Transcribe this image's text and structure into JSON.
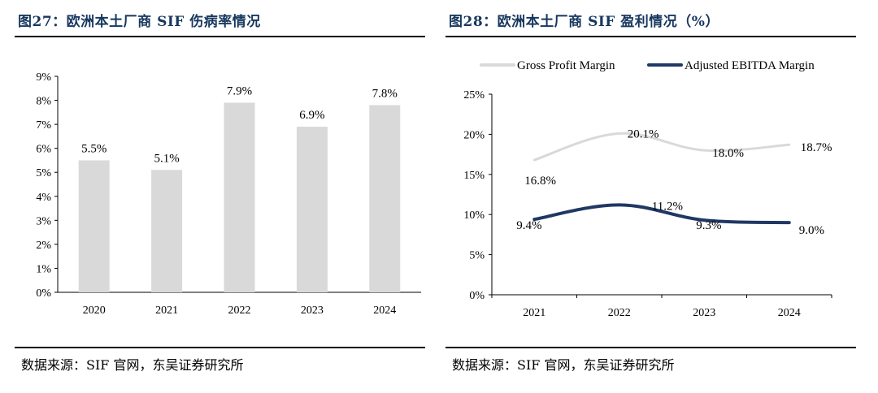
{
  "chart_data": [
    {
      "type": "bar",
      "title": "图27：欧洲本土厂商 SIF 伤病率情况",
      "source": "数据来源：SIF 官网，东吴证券研究所",
      "categories": [
        "2020",
        "2021",
        "2022",
        "2023",
        "2024"
      ],
      "values": [
        5.5,
        5.1,
        7.9,
        6.9,
        7.8
      ],
      "data_labels": [
        "5.5%",
        "5.1%",
        "7.9%",
        "6.9%",
        "7.8%"
      ],
      "yticks": [
        "0%",
        "1%",
        "2%",
        "3%",
        "4%",
        "5%",
        "6%",
        "7%",
        "8%",
        "9%"
      ],
      "ylim": [
        0,
        9
      ],
      "xlabel": "",
      "ylabel": "",
      "bar_color": "#d9d9d9"
    },
    {
      "type": "line",
      "title": "图28：欧洲本土厂商 SIF 盈利情况（%）",
      "source": "数据来源：SIF 官网，东吴证券研究所",
      "categories": [
        "2021",
        "2022",
        "2023",
        "2024"
      ],
      "series": [
        {
          "name": "Gross Profit Margin",
          "values": [
            16.8,
            20.1,
            18.0,
            18.7
          ],
          "data_labels": [
            "16.8%",
            "20.1%",
            "18.0%",
            "18.7%"
          ],
          "color": "#d9d9d9"
        },
        {
          "name": "Adjusted EBITDA Margin",
          "values": [
            9.4,
            11.2,
            9.3,
            9.0
          ],
          "data_labels": [
            "9.4%",
            "11.2%",
            "9.3%",
            "9.0%"
          ],
          "color": "#1f3864"
        }
      ],
      "yticks": [
        "0%",
        "5%",
        "10%",
        "15%",
        "20%",
        "25%"
      ],
      "ylim": [
        0,
        25
      ],
      "legend_position": "top"
    }
  ]
}
